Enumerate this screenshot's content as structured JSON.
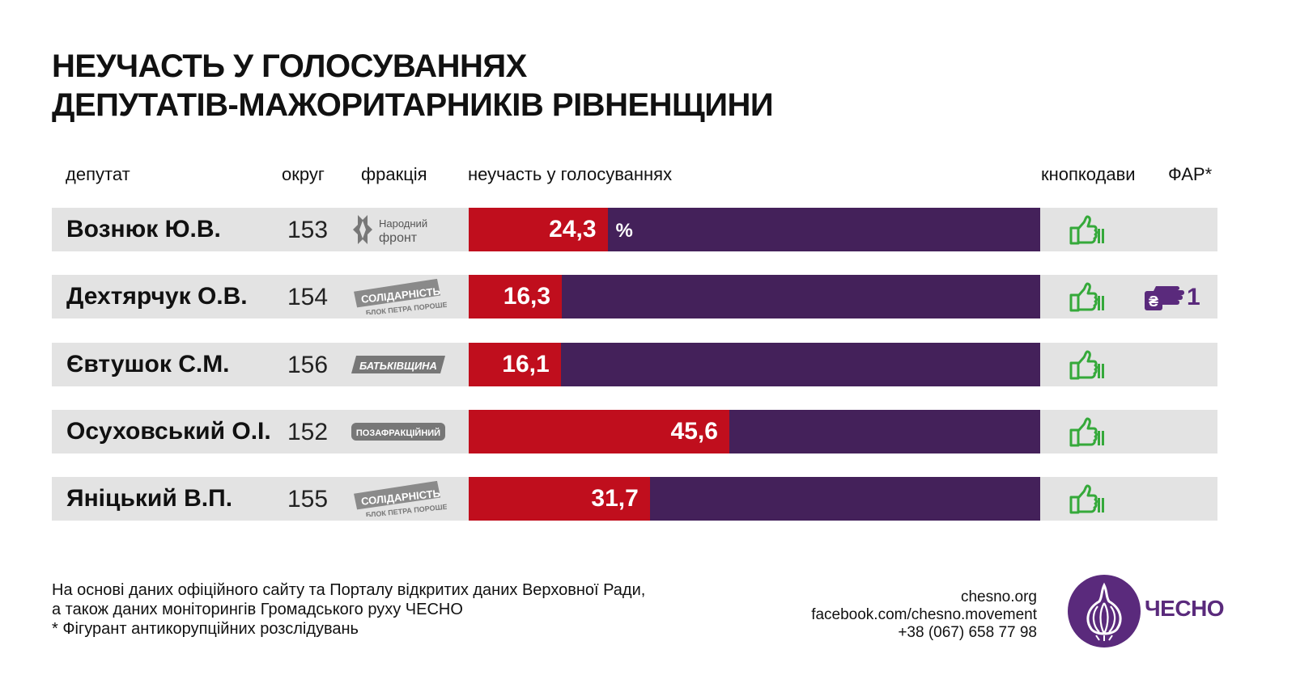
{
  "title": {
    "line1": "НЕУЧАСТЬ У ГОЛОСУВАННЯХ",
    "line2": "ДЕПУТАТІВ-МАЖОРИТАРНИКІВ РІВНЕНЩИНИ"
  },
  "headers": {
    "deputy": "депутат",
    "district": "округ",
    "faction": "фракція",
    "absence": "неучасть у голосуваннях",
    "button_voting": "кнопкодави",
    "far": "ФАР*"
  },
  "colors": {
    "absence": "#c00e1d",
    "participation": "#44215a",
    "row_bg": "#e3e3e3",
    "thumb_icon": "#35a93a",
    "brand": "#5a2a7c"
  },
  "rows": [
    {
      "name": "Вознюк Ю.В.",
      "district": "153",
      "faction": {
        "type": "narodnyi-front",
        "line1": "Народний",
        "line2": "фронт"
      },
      "absence": 24.3,
      "absence_label": "24,3",
      "pct_sign": "%",
      "button_voting": "thumbs-up-icon",
      "far": null
    },
    {
      "name": "Дехтярчук О.В.",
      "district": "154",
      "faction": {
        "type": "solidarnist",
        "line1": "СОЛІДАРНІСТЬ",
        "line2": "БЛОК ПЕТРА ПОРОШЕНКА"
      },
      "absence": 16.3,
      "absence_label": "16,3",
      "button_voting": "thumbs-up-icon",
      "far": {
        "icon": "hand-money-icon",
        "count": "1"
      }
    },
    {
      "name": "Євтушок С.М.",
      "district": "156",
      "faction": {
        "type": "batkivshchyna",
        "line1": "БАТЬКІВЩИНА"
      },
      "absence": 16.1,
      "absence_label": "16,1",
      "button_voting": "thumbs-up-icon",
      "far": null
    },
    {
      "name": "Осуховський О.І.",
      "district": "152",
      "faction": {
        "type": "pozafraktsiynyi",
        "line1": "ПОЗАФРАКЦІЙНИЙ"
      },
      "absence": 45.6,
      "absence_label": "45,6",
      "button_voting": "thumbs-up-icon",
      "far": null
    },
    {
      "name": "Яніцький В.П.",
      "district": "155",
      "faction": {
        "type": "solidarnist",
        "line1": "СОЛІДАРНІСТЬ",
        "line2": "БЛОК ПЕТРА ПОРОШЕНКА"
      },
      "absence": 31.7,
      "absence_label": "31,7",
      "button_voting": "thumbs-up-icon",
      "far": null
    }
  ],
  "chart_data": {
    "type": "bar",
    "orientation": "horizontal",
    "stacked_to": 100,
    "categories": [
      "Вознюк Ю.В.",
      "Дехтярчук О.В.",
      "Євтушок С.М.",
      "Осуховський О.І.",
      "Яніцький В.П."
    ],
    "values": [
      24.3,
      16.3,
      16.1,
      45.6,
      31.7
    ],
    "xlim": [
      0,
      100
    ],
    "title": "НЕУЧАСТЬ У ГОЛОСУВАННЯХ ДЕПУТАТІВ-МАЖОРИТАРНИКІВ РІВНЕНЩИНИ",
    "grid": false
  },
  "footer": {
    "line1": "На основі даних офіційного сайту та Порталу відкритих даних Верховної Ради,",
    "line2": "а також даних моніторингів Громадського руху ЧЕСНО",
    "line3": "* Фігурант антикорупційних розслідувань"
  },
  "contacts": {
    "site": "chesno.org",
    "facebook": "facebook.com/chesno.movement",
    "phone": "+38 (067) 658 77 98"
  },
  "logo": {
    "text": "ЧЕСНО",
    "icon": "garlic-logo-icon"
  }
}
